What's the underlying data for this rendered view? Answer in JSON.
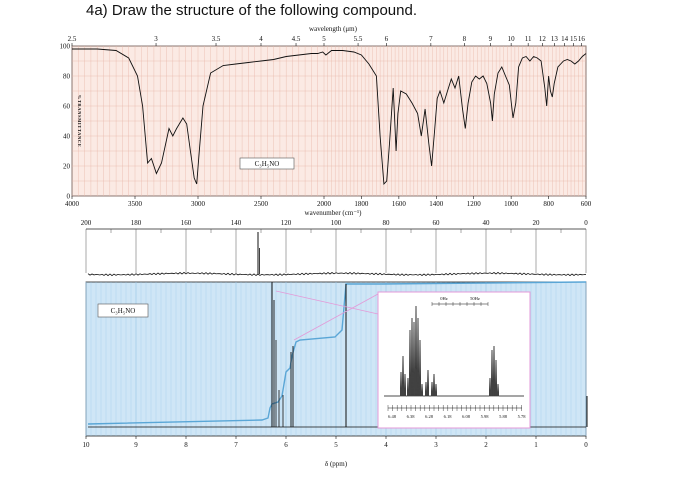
{
  "question": "4a) Draw the structure of the following compound.",
  "ir": {
    "top_axis_label": "wavelength (μm)",
    "bottom_axis_label": "wavenumber (cm⁻¹)",
    "y_axis_label": "%TRANSMITTANCE",
    "formula": "C₃H₅NO",
    "top_ticks": [
      {
        "label": "2.5",
        "wn": 4000
      },
      {
        "label": "3",
        "wn": 3333
      },
      {
        "label": "3.5",
        "wn": 2857
      },
      {
        "label": "4",
        "wn": 2500
      },
      {
        "label": "4.5",
        "wn": 2222
      },
      {
        "label": "5",
        "wn": 2000
      },
      {
        "label": "5.5",
        "wn": 1818
      },
      {
        "label": "6",
        "wn": 1667
      },
      {
        "label": "7",
        "wn": 1429
      },
      {
        "label": "8",
        "wn": 1250
      },
      {
        "label": "9",
        "wn": 1111
      },
      {
        "label": "10",
        "wn": 1000
      },
      {
        "label": "11",
        "wn": 909
      },
      {
        "label": "12",
        "wn": 833
      },
      {
        "label": "13",
        "wn": 769
      },
      {
        "label": "14",
        "wn": 714
      },
      {
        "label": "15",
        "wn": 667
      },
      {
        "label": "16",
        "wn": 625
      }
    ],
    "bottom_ticks": [
      {
        "label": "4000",
        "wn": 4000
      },
      {
        "label": "3500",
        "wn": 3500
      },
      {
        "label": "3000",
        "wn": 3000
      },
      {
        "label": "2500",
        "wn": 2500
      },
      {
        "label": "2000",
        "wn": 2000
      },
      {
        "label": "1800",
        "wn": 1800
      },
      {
        "label": "1600",
        "wn": 1600
      },
      {
        "label": "1400",
        "wn": 1400
      },
      {
        "label": "1200",
        "wn": 1200
      },
      {
        "label": "1000",
        "wn": 1000
      },
      {
        "label": "800",
        "wn": 800
      },
      {
        "label": "600",
        "wn": 600
      }
    ],
    "y_ticks": [
      "0",
      "20",
      "40",
      "60",
      "80",
      "100"
    ]
  },
  "c13": {
    "ticks": [
      "200",
      "180",
      "160",
      "140",
      "120",
      "100",
      "80",
      "60",
      "40",
      "20",
      "0"
    ]
  },
  "h1": {
    "formula": "C₃H₅NO",
    "xlabel": "δ (ppm)",
    "ticks": [
      "10",
      "9",
      "8",
      "7",
      "6",
      "5",
      "4",
      "3",
      "2",
      "1",
      "0"
    ],
    "inset_scale_labels": [
      "0Hz",
      "50Hz"
    ],
    "inset_ticks": [
      "6.48",
      "6.38",
      "6.28",
      "6.18",
      "6.08",
      "5.98",
      "5.88",
      "5.78"
    ]
  },
  "colors": {
    "grid_ir": "#e8b6a8",
    "bg_ir": "#fbeae4",
    "bg_nmr": "#cfe6f6",
    "grid_nmr": "#9cc8e8",
    "integral": "#5aa6d6",
    "inset_border": "#e39ad8"
  }
}
